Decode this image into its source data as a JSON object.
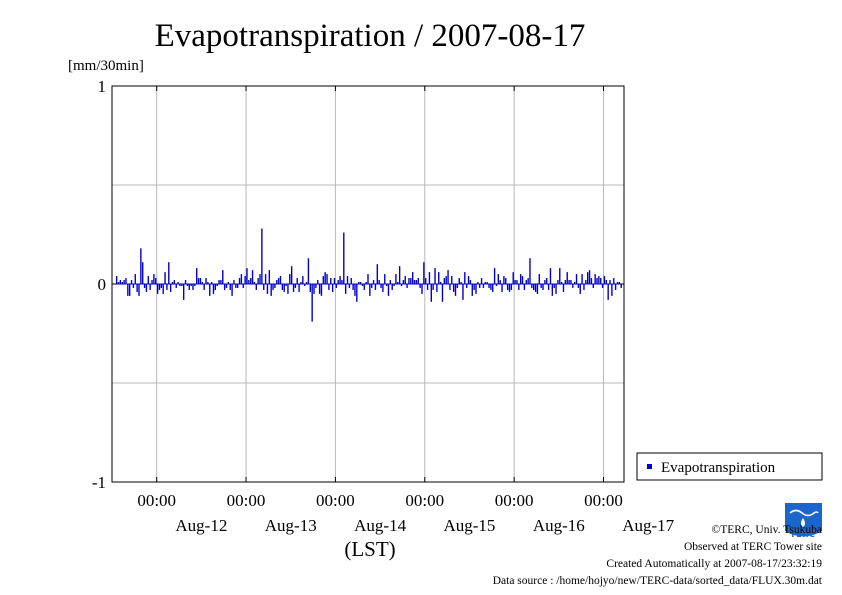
{
  "chart_data": {
    "type": "bar",
    "title": "Evapotranspiration / 2007-08-17",
    "ylabel": "[mm/30min]",
    "xlabel": "(LST)",
    "ylim": [
      -1,
      1
    ],
    "y_ticks": [
      "-1",
      "0",
      "1"
    ],
    "x_time_label": "00:00",
    "x_day_labels": [
      "Aug-12",
      "Aug-13",
      "Aug-14",
      "Aug-15",
      "Aug-16",
      "Aug-17"
    ],
    "grid": true,
    "legend": "right",
    "series": [
      {
        "name": "Evapotranspiration",
        "color": "#0000cc",
        "start": "2007-08-11 12:00",
        "interval_min": 30,
        "values": [
          0.04,
          0.01,
          0.02,
          0.01,
          0.02,
          0.03,
          -0.06,
          -0.06,
          0.02,
          -0.02,
          0.05,
          -0.04,
          -0.06,
          0.18,
          0.11,
          -0.02,
          -0.04,
          0.04,
          -0.03,
          0.02,
          0.05,
          0.03,
          -0.05,
          -0.03,
          -0.02,
          -0.05,
          0.06,
          -0.03,
          0.11,
          -0.04,
          0.01,
          0.02,
          -0.02,
          0.01,
          -0.01,
          -0.01,
          -0.08,
          0.02,
          -0.01,
          -0.03,
          -0.01,
          -0.03,
          -0.01,
          0.08,
          0.03,
          0.03,
          0.01,
          -0.03,
          0.03,
          0.01,
          -0.06,
          0.01,
          -0.05,
          -0.03,
          -0.01,
          0.02,
          0.02,
          0.07,
          -0.03,
          -0.02,
          0.01,
          -0.03,
          -0.06,
          0.02,
          -0.02,
          -0.02,
          0.03,
          0.05,
          -0.02,
          0.04,
          0.08,
          0.02,
          0.03,
          0.07,
          0.01,
          -0.03,
          0.03,
          0.05,
          0.28,
          -0.03,
          0.05,
          -0.05,
          0.07,
          -0.06,
          -0.03,
          -0.02,
          0.02,
          0.03,
          0.04,
          -0.03,
          -0.04,
          -0.01,
          -0.05,
          0.05,
          0.09,
          -0.04,
          -0.02,
          0.03,
          -0.04,
          0.01,
          0.04,
          -0.01,
          0.01,
          0.13,
          -0.04,
          -0.19,
          -0.05,
          -0.02,
          0.02,
          -0.05,
          -0.06,
          0.04,
          0.06,
          0.05,
          -0.03,
          0.03,
          -0.04,
          0.03,
          -0.02,
          0.02,
          0.04,
          0.02,
          0.26,
          -0.05,
          0.04,
          -0.02,
          0.03,
          -0.03,
          -0.06,
          -0.09,
          0.01,
          0.01,
          -0.01,
          -0.03,
          0.01,
          0.05,
          -0.06,
          -0.02,
          0.02,
          -0.03,
          0.1,
          0.02,
          -0.02,
          -0.04,
          0.05,
          -0.01,
          -0.06,
          0.02,
          -0.03,
          -0.01,
          0.05,
          0.01,
          0.09,
          -0.01,
          0.02,
          0.04,
          -0.02,
          0.03,
          0.03,
          0.06,
          0.02,
          0.02,
          0.03,
          -0.02,
          -0.05,
          0.11,
          0.03,
          -0.03,
          0.06,
          -0.09,
          -0.03,
          0.08,
          -0.04,
          0.06,
          0.01,
          -0.09,
          0.03,
          0.04,
          0.07,
          -0.03,
          0.04,
          -0.04,
          -0.06,
          -0.02,
          0.03,
          0.01,
          -0.08,
          0.06,
          -0.02,
          0.04,
          0.02,
          -0.06,
          -0.03,
          -0.05,
          0.01,
          -0.02,
          0.03,
          -0.02,
          0.01,
          0.01,
          -0.02,
          -0.03,
          -0.04,
          0.08,
          -0.01,
          0.05,
          0.02,
          -0.04,
          0.04,
          0.03,
          -0.03,
          -0.04,
          -0.03,
          0.06,
          0.02,
          0.02,
          -0.03,
          0.05,
          0.04,
          -0.03,
          0.02,
          0.03,
          0.13,
          -0.02,
          -0.03,
          -0.04,
          -0.05,
          0.05,
          -0.02,
          -0.03,
          0.02,
          0.03,
          -0.03,
          0.08,
          -0.06,
          -0.02,
          -0.05,
          0.02,
          0.08,
          0.01,
          -0.04,
          0.02,
          0.06,
          0.02,
          0.02,
          -0.02,
          0.01,
          0.05,
          -0.02,
          -0.05,
          0.05,
          -0.03,
          0.02,
          0.06,
          0.07,
          0.03,
          -0.02,
          0.05,
          0.03,
          0.04,
          0.03,
          -0.02,
          0.04,
          0.02,
          -0.08,
          0.02,
          -0.06,
          0.03,
          -0.03,
          0.01,
          0.01,
          -0.02
        ]
      }
    ]
  },
  "credits": {
    "line1": "©TERC, Univ. Tsukuba",
    "line2": "Observed at TERC Tower site",
    "line3": "Created Automatically at 2007-08-17/23:32:19",
    "line4": "Data source : /home/hojyo/new/TERC-data/sorted_data/FLUX.30m.dat"
  },
  "logo": {
    "text": "TERC",
    "color": "#1a66cc",
    "icon": "terc-logo"
  }
}
